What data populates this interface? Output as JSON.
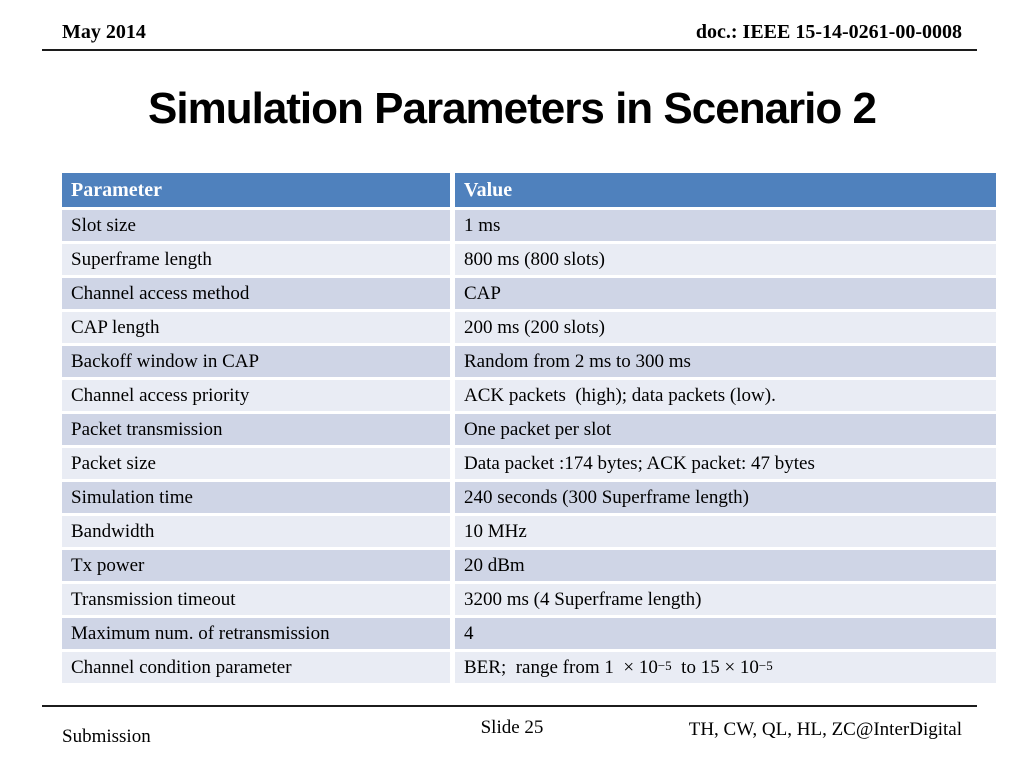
{
  "header": {
    "date": "May 2014",
    "doc": "doc.: IEEE 15-14-0261-00-0008"
  },
  "title": "Simulation Parameters in Scenario 2",
  "table": {
    "columns": [
      "Parameter",
      "Value"
    ],
    "header_bg": "#4f81bd",
    "header_text_color": "#ffffff",
    "row_colors": [
      "#cfd5e6",
      "#e9ecf4"
    ],
    "rows": [
      {
        "parameter": "Slot size",
        "value": "1 ms"
      },
      {
        "parameter": "Superframe length",
        "value": "800 ms (800 slots)"
      },
      {
        "parameter": "Channel access method",
        "value": "CAP"
      },
      {
        "parameter": "CAP length",
        "value": "200 ms (200 slots)"
      },
      {
        "parameter": "Backoff window in CAP",
        "value": "Random from 2 ms to 300 ms"
      },
      {
        "parameter": "Channel access priority",
        "value": "ACK packets  (high); data packets (low)."
      },
      {
        "parameter": "Packet transmission",
        "value": "One packet per slot"
      },
      {
        "parameter": "Packet size",
        "value": "Data packet :174 bytes; ACK packet: 47 bytes"
      },
      {
        "parameter": "Simulation time",
        "value": "240 seconds (300 Superframe length)"
      },
      {
        "parameter": "Bandwidth",
        "value": "10 MHz"
      },
      {
        "parameter": "Tx power",
        "value": "20 dBm"
      },
      {
        "parameter": "Transmission timeout",
        "value": "3200 ms (4 Superframe length)"
      },
      {
        "parameter": "Maximum num. of retransmission",
        "value": "4"
      },
      {
        "parameter": "Channel condition parameter",
        "value_parts": [
          {
            "text": "BER;  range from 1  × 10"
          },
          {
            "text": "−5",
            "sup": true
          },
          {
            "text": "  to 15 × 10"
          },
          {
            "text": "−5",
            "sup": true
          }
        ]
      }
    ]
  },
  "footer": {
    "left": "Submission",
    "center": "Slide 25",
    "right": "TH, CW, QL, HL, ZC@InterDigital"
  }
}
